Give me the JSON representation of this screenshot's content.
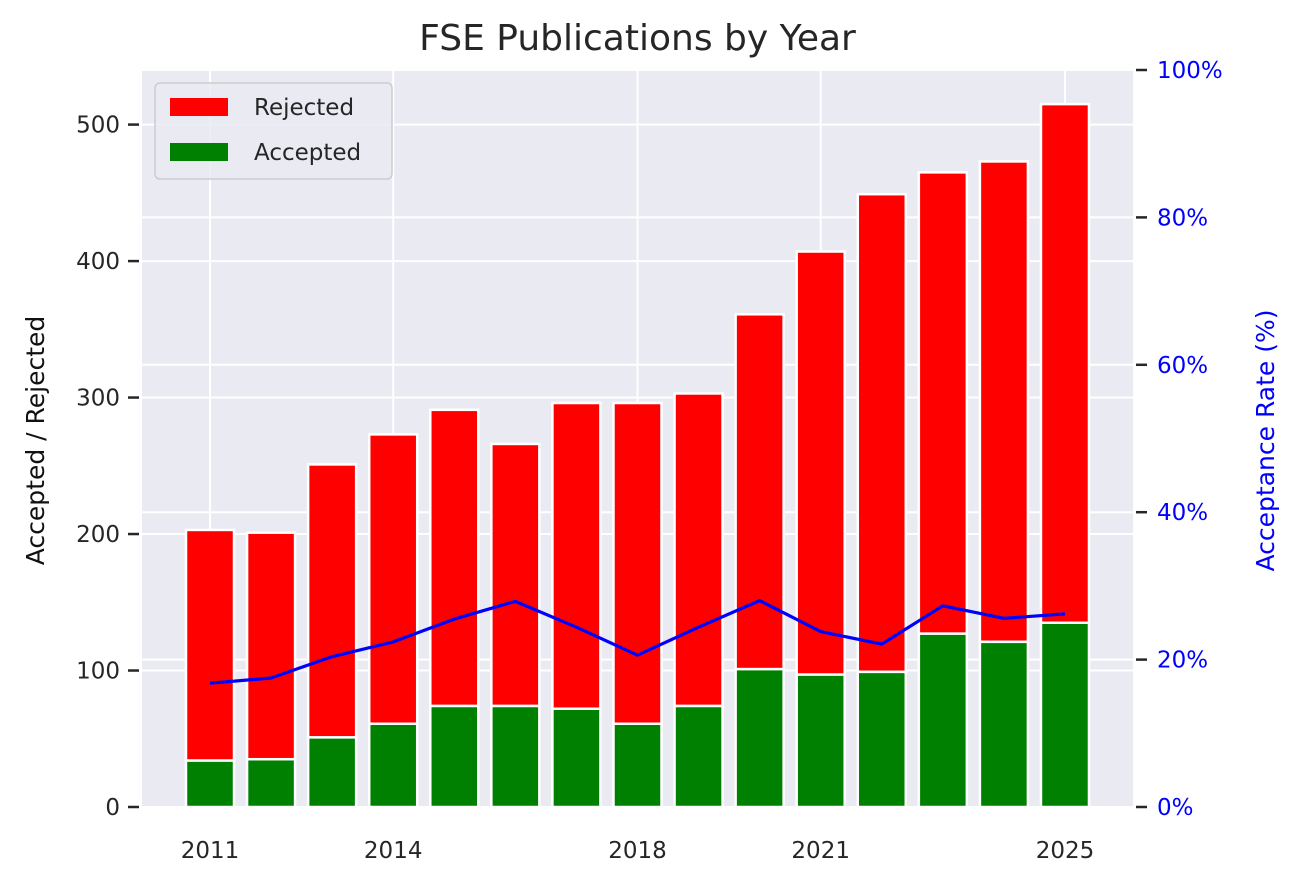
{
  "chart_data": {
    "type": "bar",
    "title": "FSE Publications by Year",
    "ylabel": "Accepted / Rejected",
    "y2label": "Acceptance Rate (%)",
    "categories": [
      2011,
      2012,
      2013,
      2014,
      2015,
      2016,
      2017,
      2018,
      2019,
      2020,
      2021,
      2022,
      2023,
      2024,
      2025
    ],
    "xtick_labels": [
      {
        "year": 2011,
        "label": "2011"
      },
      {
        "year": 2014,
        "label": "2014"
      },
      {
        "year": 2018,
        "label": "2018"
      },
      {
        "year": 2021,
        "label": "2021"
      },
      {
        "year": 2025,
        "label": "2025"
      }
    ],
    "series": [
      {
        "name": "Rejected",
        "type": "bar",
        "stacked_on": "Accepted",
        "color": "#ff0000",
        "values": [
          169,
          166,
          200,
          212,
          217,
          192,
          224,
          235,
          229,
          260,
          310,
          350,
          338,
          352,
          380
        ]
      },
      {
        "name": "Accepted",
        "type": "bar",
        "color": "#008000",
        "values": [
          34,
          35,
          51,
          61,
          74,
          74,
          72,
          61,
          74,
          101,
          97,
          99,
          127,
          121,
          135
        ]
      },
      {
        "name": "Acceptance Rate",
        "type": "line",
        "axis": "right",
        "color": "#0000ff",
        "values": [
          16.8,
          17.5,
          20.4,
          22.4,
          25.5,
          27.9,
          24.4,
          20.6,
          24.4,
          28.0,
          23.8,
          22.1,
          27.3,
          25.6,
          26.2
        ]
      }
    ],
    "ylim": [
      0,
      540
    ],
    "yticks": [
      0,
      100,
      200,
      300,
      400,
      500
    ],
    "y2lim": [
      0,
      100
    ],
    "y2ticks": [
      0,
      20,
      40,
      60,
      80,
      100
    ],
    "y2tick_labels": [
      "0%",
      "20%",
      "40%",
      "60%",
      "80%",
      "100%"
    ],
    "grid": true,
    "legend": "upper-left",
    "colors": {
      "background": "#eaeaf2",
      "grid": "#ffffff",
      "rate_axis": "#0000ff"
    }
  }
}
